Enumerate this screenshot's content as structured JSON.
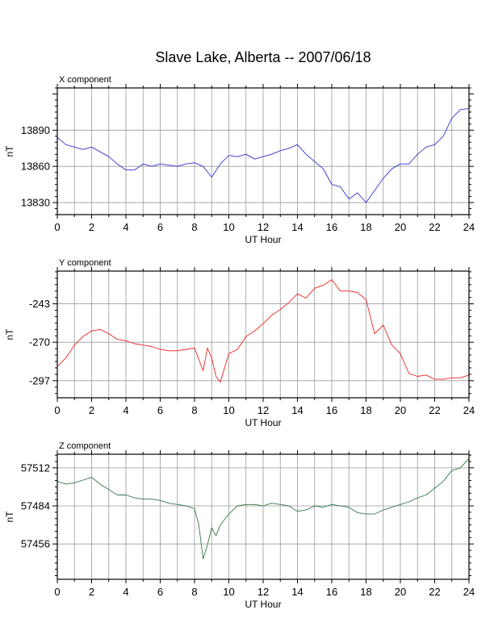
{
  "chart_data": {
    "type": "line",
    "title": "Slave Lake, Alberta -- 2007/06/18",
    "panels": [
      {
        "id": "x",
        "component_label": "X component",
        "xlabel": "UT Hour",
        "ylabel": "nT",
        "xlim": [
          0,
          24
        ],
        "ylim": [
          13820,
          13925
        ],
        "xticks": [
          0,
          2,
          4,
          6,
          8,
          10,
          12,
          14,
          16,
          18,
          20,
          22,
          24
        ],
        "yticks": [
          13830,
          13860,
          13890
        ],
        "color": "#3333cc",
        "x": [
          0,
          0.5,
          1,
          1.5,
          2,
          2.5,
          3,
          3.5,
          4,
          4.5,
          5,
          5.5,
          6,
          6.5,
          7,
          7.5,
          8,
          8.5,
          9,
          9.5,
          10,
          10.5,
          11,
          11.5,
          12,
          12.5,
          13,
          13.5,
          14,
          14.5,
          15,
          15.5,
          16,
          16.5,
          17,
          17.5,
          18,
          18.5,
          19,
          19.5,
          20,
          20.5,
          21,
          21.5,
          22,
          22.5,
          23,
          23.5,
          24
        ],
        "values": [
          13884,
          13878,
          13876,
          13874,
          13876,
          13872,
          13868,
          13862,
          13857,
          13857,
          13862,
          13860,
          13862,
          13861,
          13860,
          13862,
          13863,
          13860,
          13851,
          13862,
          13869,
          13868,
          13870,
          13866,
          13868,
          13870,
          13873,
          13875,
          13878,
          13870,
          13864,
          13858,
          13845,
          13843,
          13833,
          13838,
          13830,
          13840,
          13850,
          13858,
          13862,
          13862,
          13870,
          13876,
          13878,
          13885,
          13900,
          13907,
          13908
        ]
      },
      {
        "id": "y",
        "component_label": "Y component",
        "xlabel": "UT Hour",
        "ylabel": "nT",
        "xlim": [
          0,
          24
        ],
        "ylim": [
          -309,
          -220
        ],
        "xticks": [
          0,
          2,
          4,
          6,
          8,
          10,
          12,
          14,
          16,
          18,
          20,
          22,
          24
        ],
        "yticks": [
          -297,
          -270,
          -243
        ],
        "color": "#ee2222",
        "x": [
          0,
          0.5,
          1,
          1.5,
          2,
          2.5,
          3,
          3.5,
          4,
          4.5,
          5,
          5.5,
          6,
          6.5,
          7,
          7.5,
          8,
          8.25,
          8.5,
          8.75,
          9,
          9.25,
          9.5,
          10,
          10.5,
          11,
          11.5,
          12,
          12.5,
          13,
          13.5,
          14,
          14.5,
          15,
          15.5,
          16,
          16.5,
          17,
          17.5,
          18,
          18.5,
          19,
          19.5,
          20,
          20.5,
          21,
          21.5,
          22,
          22.5,
          23,
          23.5,
          24
        ],
        "values": [
          -287,
          -281,
          -272,
          -266,
          -262,
          -261,
          -264,
          -268,
          -269,
          -271,
          -272,
          -273,
          -275,
          -276,
          -276,
          -275,
          -274,
          -282,
          -290,
          -274,
          -281,
          -294,
          -298,
          -278,
          -275,
          -266,
          -262,
          -257,
          -251,
          -247,
          -242,
          -236,
          -239,
          -232,
          -230,
          -226,
          -234,
          -234,
          -235,
          -240,
          -264,
          -258,
          -272,
          -278,
          -292,
          -294,
          -293,
          -296,
          -296,
          -295,
          -295,
          -293
        ]
      },
      {
        "id": "z",
        "component_label": "Z component",
        "xlabel": "UT Hour",
        "ylabel": "nT",
        "xlim": [
          0,
          24
        ],
        "ylim": [
          57430,
          57522
        ],
        "xticks": [
          0,
          2,
          4,
          6,
          8,
          10,
          12,
          14,
          16,
          18,
          20,
          22,
          24
        ],
        "yticks": [
          57456,
          57484,
          57512
        ],
        "color": "#337744",
        "x": [
          0,
          0.5,
          1,
          1.5,
          2,
          2.5,
          3,
          3.5,
          4,
          4.5,
          5,
          5.5,
          6,
          6.5,
          7,
          7.5,
          8,
          8.25,
          8.5,
          8.75,
          9,
          9.25,
          9.5,
          10,
          10.5,
          11,
          11.5,
          12,
          12.5,
          13,
          13.5,
          14,
          14.5,
          15,
          15.5,
          16,
          16.5,
          17,
          17.5,
          18,
          18.5,
          19,
          19.5,
          20,
          20.5,
          21,
          21.5,
          22,
          22.5,
          23,
          23.5,
          24
        ],
        "values": [
          57502,
          57500,
          57501,
          57503,
          57505,
          57500,
          57496,
          57492,
          57492,
          57490,
          57489,
          57489,
          57488,
          57486,
          57485,
          57484,
          57482,
          57470,
          57445,
          57455,
          57468,
          57462,
          57470,
          57478,
          57484,
          57485,
          57485,
          57484,
          57486,
          57485,
          57484,
          57480,
          57481,
          57484,
          57483,
          57485,
          57484,
          57483,
          57479,
          57478,
          57478,
          57481,
          57483,
          57485,
          57487,
          57490,
          57492,
          57497,
          57502,
          57510,
          57512,
          57519
        ]
      }
    ]
  }
}
